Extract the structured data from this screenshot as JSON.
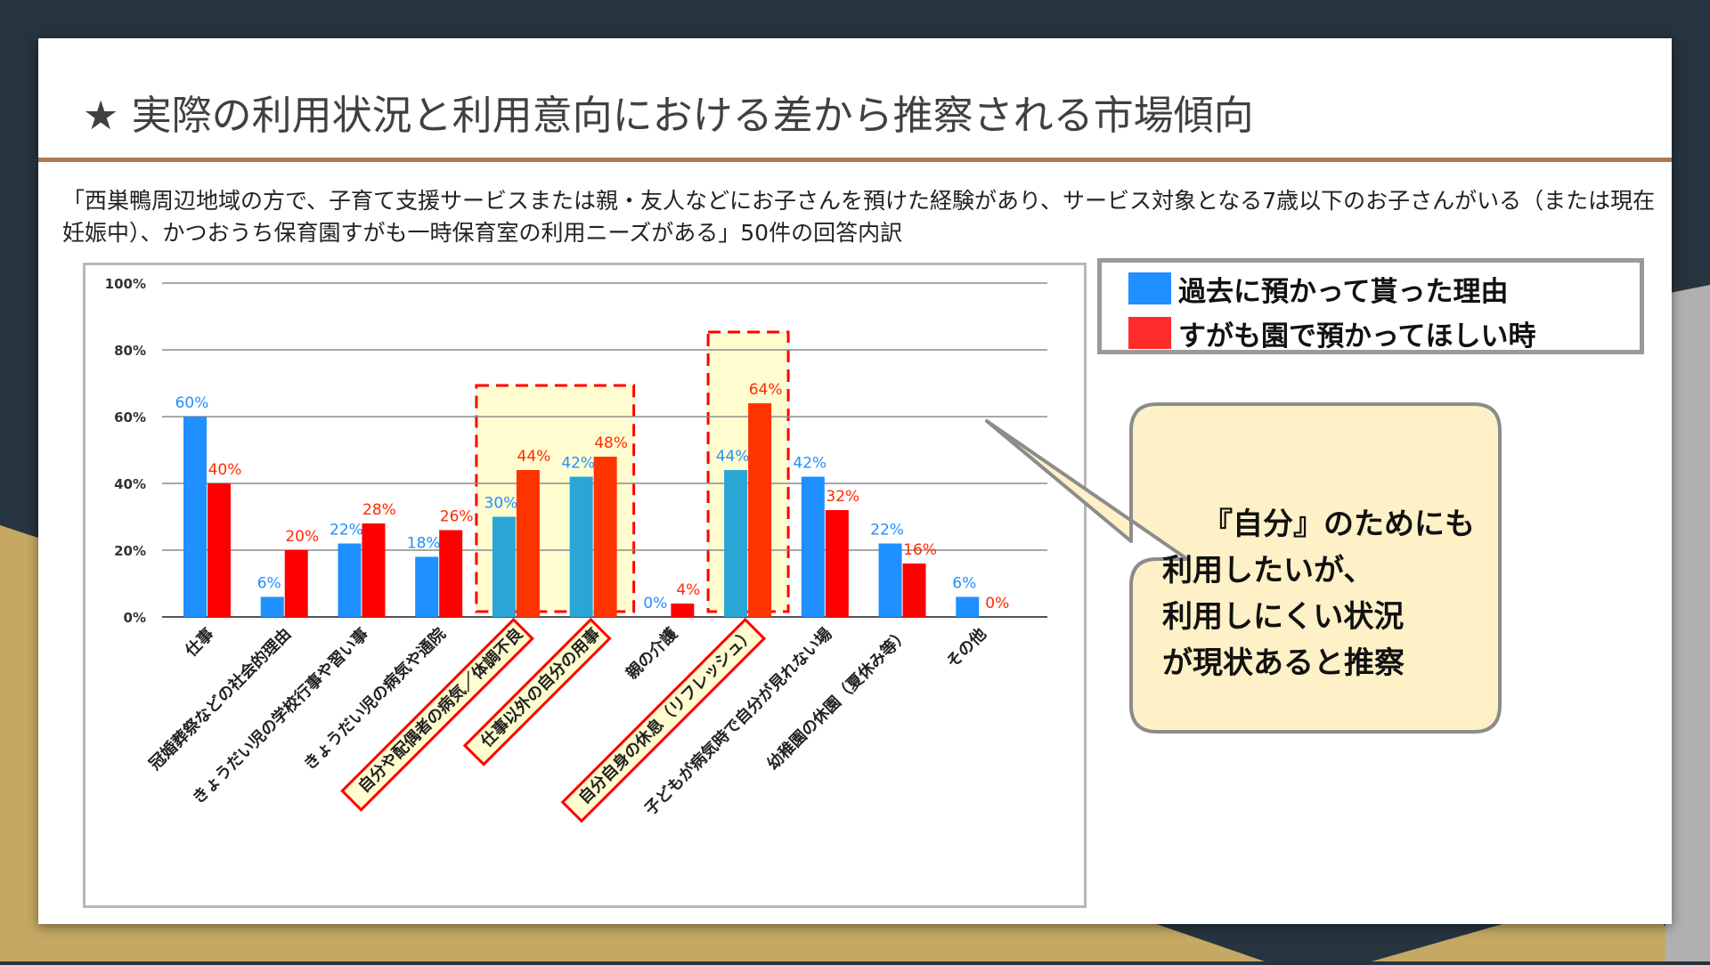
{
  "slide": {
    "title": "★ 実際の利用状況と利用意向における差から推察される市場傾向",
    "description": "「西巣鴨周辺地域の方で、子育て支援サービスまたは親・友人などにお子さんを預けた経験があり、サービス対象となる7歳以下のお子さんがいる（または現在妊娠中）、かつおうち保育園すがも一時保育室の利用ニーズがある」50件の回答内訳"
  },
  "legend": [
    {
      "label": "過去に預かって貰った理由",
      "color": "#1e90ff"
    },
    {
      "label": "すがも園で預かってほしい時",
      "color": "#ff2a2a"
    }
  ],
  "callout": {
    "lines": [
      "『自分』のためにも",
      "利用したいが、",
      "利用しにくい状況",
      "が現状あると推察"
    ]
  },
  "colors": {
    "past": "#1e90ff",
    "past_highlight": "#2aa6d6",
    "want": "#ff0000",
    "want_highlight": "#ff3300",
    "highlight_fill": "#fffcd0",
    "highlight_border": "#ff0000",
    "callout_fill": "#fff1c7"
  },
  "chart_data": {
    "type": "bar",
    "ylim": [
      0,
      100
    ],
    "ytick_labels": [
      "0%",
      "20%",
      "40%",
      "60%",
      "80%",
      "100%"
    ],
    "categories": [
      "仕事",
      "冠婚葬祭などの社会的理由",
      "きょうだい児の学校行事や習い事",
      "きょうだい児の病気や通院",
      "自分や配偶者の病気／体調不良",
      "仕事以外の自分の用事",
      "親の介護",
      "自分自身の休息（リフレッシュ）",
      "子どもが病気時で自分が見れない場",
      "幼稚園の休園（夏休み等）",
      "その他"
    ],
    "series": [
      {
        "name": "過去に預かって貰った理由",
        "values": [
          60,
          6,
          22,
          18,
          30,
          42,
          0,
          44,
          42,
          22,
          6
        ],
        "labels": [
          "60%",
          "6%",
          "22%",
          "18%",
          "30%",
          "42%",
          "0%",
          "44%",
          "42%",
          "22%",
          "6%"
        ]
      },
      {
        "name": "すがも園で預かってほしい時",
        "values": [
          40,
          20,
          28,
          26,
          44,
          48,
          4,
          64,
          32,
          16,
          0
        ],
        "labels": [
          "40%",
          "20%",
          "28%",
          "26%",
          "44%",
          "48%",
          "4%",
          "64%",
          "32%",
          "16%",
          "0%"
        ]
      }
    ],
    "highlighted_categories": [
      4,
      5,
      7
    ],
    "grid": true
  }
}
